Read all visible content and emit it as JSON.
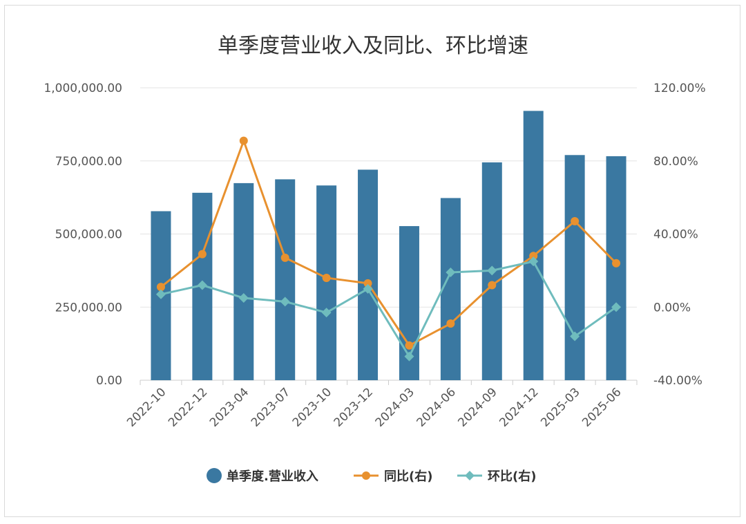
{
  "chart_data": {
    "type": "bar",
    "title": "单季度营业收入及同比、环比增速",
    "categories": [
      "2022-10",
      "2022-12",
      "2023-04",
      "2023-07",
      "2023-10",
      "2023-12",
      "2024-03",
      "2024-06",
      "2024-09",
      "2024-12",
      "2025-03",
      "2025-06"
    ],
    "left_axis": {
      "ylim": [
        0,
        1000000
      ],
      "ticks": [
        0,
        250000,
        500000,
        750000,
        1000000
      ],
      "tick_labels": [
        "0.00",
        "250,000.00",
        "500,000.00",
        "750,000.00",
        "1,000,000.00"
      ]
    },
    "right_axis": {
      "ylim": [
        -40,
        120
      ],
      "ticks": [
        -40,
        0,
        40,
        80,
        120
      ],
      "tick_labels": [
        "-40.00%",
        "0.00%",
        "40.00%",
        "80.00%",
        "120.00%"
      ]
    },
    "series": [
      {
        "name": "单季度.营业收入",
        "type": "bar",
        "axis": "left",
        "color": "#3a78a1",
        "values": [
          578000,
          641000,
          674000,
          687000,
          666000,
          720000,
          527000,
          623000,
          745000,
          921000,
          770000,
          766000
        ]
      },
      {
        "name": "同比(右)",
        "type": "line",
        "axis": "right",
        "color": "#e8912f",
        "marker": "circle",
        "values": [
          11,
          29,
          91,
          27,
          16,
          13,
          -21,
          -9,
          12,
          28,
          47,
          24
        ]
      },
      {
        "name": "环比(右)",
        "type": "line",
        "axis": "right",
        "color": "#6fbcbd",
        "marker": "diamond",
        "values": [
          7,
          12,
          5,
          3,
          -3,
          10,
          -27,
          19,
          20,
          25,
          -16,
          0
        ]
      }
    ],
    "grid": true,
    "legend_position": "bottom"
  }
}
